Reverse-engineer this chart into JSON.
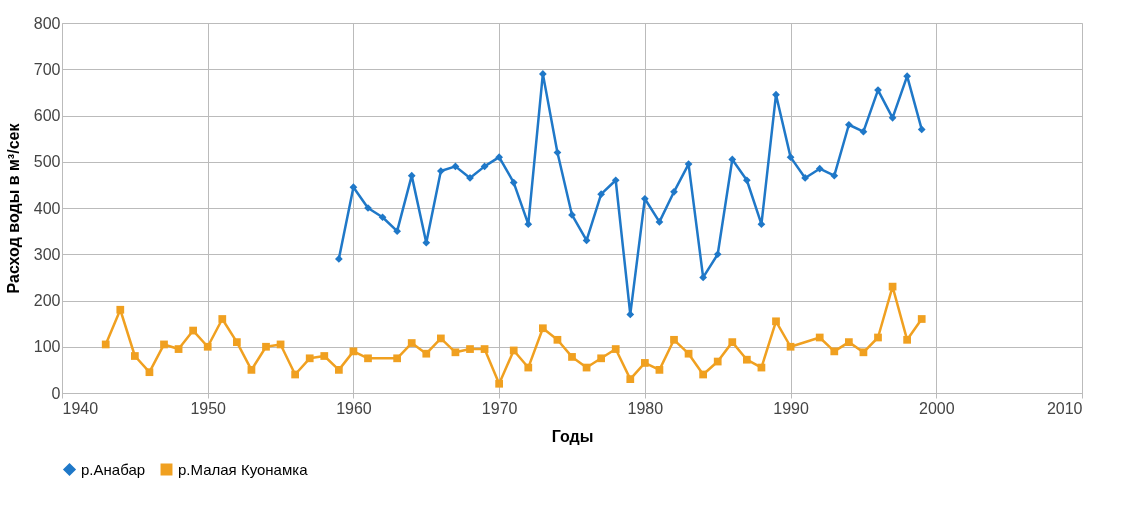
{
  "chart_data": {
    "type": "line",
    "xlabel": "Годы",
    "ylabel": "Расход воды в м³/сек",
    "xlim": [
      1940,
      2010
    ],
    "xticks": [
      1940,
      1950,
      1960,
      1970,
      1980,
      1990,
      2000,
      2010
    ],
    "ylim": [
      0,
      800
    ],
    "yticks": [
      0,
      100,
      200,
      300,
      400,
      500,
      600,
      700,
      800
    ],
    "grid": true,
    "legend": "bottom",
    "line_style": "solid",
    "series": [
      {
        "name": "р.Анабар",
        "color": "#1f78c8",
        "marker": "diamond",
        "x": [
          1959,
          1960,
          1961,
          1962,
          1963,
          1964,
          1965,
          1966,
          1967,
          1968,
          1969,
          1970,
          1971,
          1972,
          1973,
          1974,
          1975,
          1976,
          1977,
          1978,
          1979,
          1980,
          1981,
          1982,
          1983,
          1984,
          1985,
          1986,
          1987,
          1988,
          1989,
          1990,
          1991,
          1992,
          1993,
          1994,
          1995,
          1996,
          1997,
          1998,
          1999
        ],
        "values": [
          290,
          445,
          400,
          380,
          350,
          470,
          325,
          480,
          490,
          465,
          490,
          510,
          455,
          365,
          690,
          520,
          385,
          330,
          430,
          460,
          170,
          420,
          370,
          435,
          495,
          250,
          300,
          505,
          460,
          365,
          645,
          510,
          465,
          485,
          470,
          580,
          565,
          655,
          595,
          685,
          570
        ]
      },
      {
        "name": "р.Малая Куонамка",
        "color": "#f0a020",
        "marker": "square",
        "x": [
          1943,
          1944,
          1945,
          1946,
          1947,
          1948,
          1949,
          1950,
          1951,
          1952,
          1953,
          1954,
          1955,
          1956,
          1957,
          1958,
          1959,
          1960,
          1961,
          1963,
          1964,
          1965,
          1966,
          1967,
          1968,
          1969,
          1970,
          1971,
          1972,
          1973,
          1974,
          1975,
          1976,
          1977,
          1978,
          1979,
          1980,
          1981,
          1982,
          1983,
          1984,
          1985,
          1986,
          1987,
          1988,
          1989,
          1990,
          1992,
          1993,
          1994,
          1995,
          1996,
          1997,
          1998,
          1999
        ],
        "values": [
          105,
          180,
          80,
          45,
          105,
          95,
          135,
          100,
          160,
          110,
          50,
          100,
          105,
          40,
          75,
          80,
          50,
          90,
          75,
          75,
          108,
          85,
          118,
          88,
          95,
          95,
          20,
          92,
          55,
          140,
          115,
          78,
          55,
          75,
          95,
          30,
          65,
          50,
          115,
          85,
          40,
          68,
          110,
          72,
          55,
          155,
          100,
          120,
          90,
          110,
          88,
          120,
          230,
          115,
          160
        ]
      }
    ]
  }
}
